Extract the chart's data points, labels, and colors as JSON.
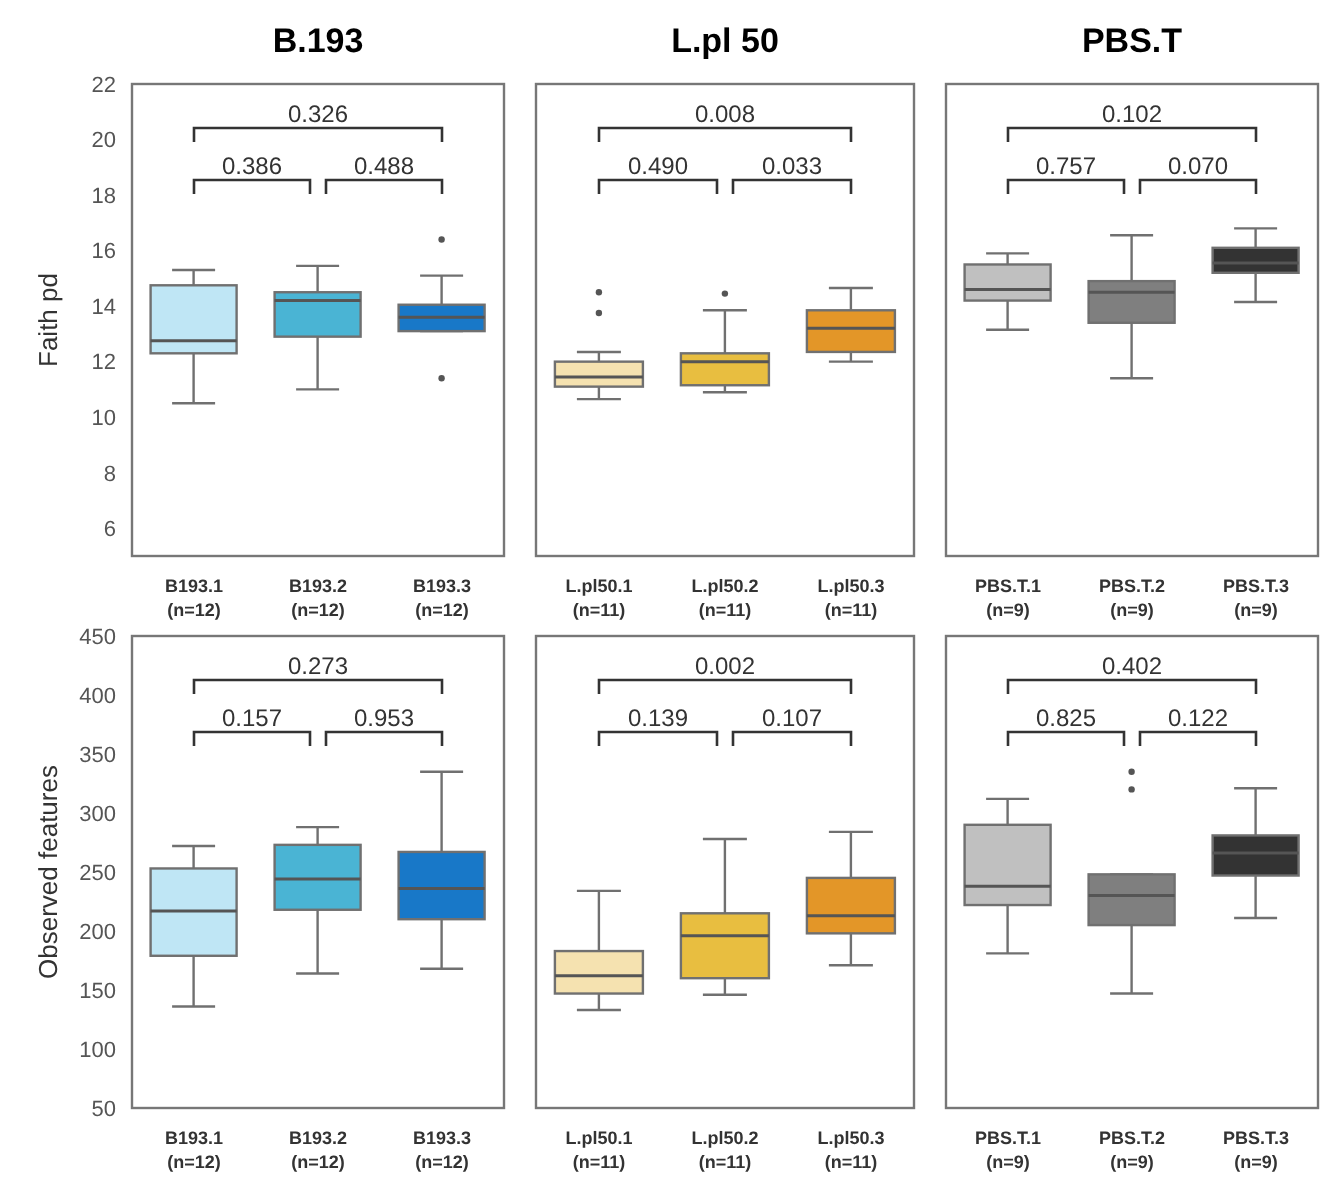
{
  "chart_data": [
    {
      "type": "box",
      "title": "B.193",
      "ylabel": "Faith pd",
      "categories": [
        "B193.1 (n=12)",
        "B193.2 (n=12)",
        "B193.3 (n=12)"
      ],
      "colors": [
        "#bfe6f5",
        "#4ab4d4",
        "#1878c8"
      ],
      "ylim": [
        5,
        22
      ],
      "yticks": [
        6,
        8,
        10,
        12,
        14,
        16,
        18,
        20,
        22
      ],
      "boxes": [
        {
          "low": 10.5,
          "q1": 12.3,
          "median": 12.75,
          "q3": 14.75,
          "high": 15.3
        },
        {
          "low": 11,
          "q1": 12.9,
          "median": 14.2,
          "q3": 14.5,
          "high": 15.45
        },
        {
          "low": 13.1,
          "q1": 13.1,
          "median": 13.6,
          "q3": 14.05,
          "high": 15.1,
          "outliers": [
            16.4,
            11.4
          ]
        }
      ],
      "annotations": [
        "0.326",
        "0.386",
        "0.488"
      ]
    },
    {
      "type": "box",
      "title": "L.pl 50",
      "categories": [
        "L.pl50.1 (n=11)",
        "L.pl50.2 (n=11)",
        "L.pl50.3 (n=11)"
      ],
      "colors": [
        "#f5e2b0",
        "#e8be40",
        "#e39628"
      ],
      "ylim": [
        5,
        22
      ],
      "yticks": [
        6,
        8,
        10,
        12,
        14,
        16,
        18,
        20,
        22
      ],
      "tick_labels": "x",
      "boxes": [
        {
          "low": 10.65,
          "q1": 11.1,
          "median": 11.45,
          "q3": 12,
          "high": 12.35,
          "outliers": [
            14.5,
            13.75
          ]
        },
        {
          "low": 10.9,
          "q1": 11.15,
          "median": 12,
          "q3": 12.3,
          "high": 13.85,
          "outliers": [
            14.45
          ]
        },
        {
          "low": 12,
          "q1": 12.35,
          "median": 13.2,
          "q3": 13.85,
          "high": 14.65
        }
      ],
      "annotations": [
        "0.008",
        "0.490",
        "0.033"
      ]
    },
    {
      "type": "box",
      "title": "PBS.T",
      "categories": [
        "PBS.T.1 (n=9)",
        "PBS.T.2 (n=9)",
        "PBS.T.3 (n=9)"
      ],
      "colors": [
        "#c0c0c0",
        "#7f7f7f",
        "#333333"
      ],
      "ylim": [
        5,
        22
      ],
      "yticks": [
        6,
        8,
        10,
        12,
        14,
        16,
        18,
        20,
        22
      ],
      "tick_labels": "x",
      "boxes": [
        {
          "low": 13.15,
          "q1": 14.2,
          "median": 14.6,
          "q3": 15.5,
          "high": 15.9
        },
        {
          "low": 11.4,
          "q1": 13.4,
          "median": 14.5,
          "q3": 14.9,
          "high": 16.55
        },
        {
          "low": 14.15,
          "q1": 15.2,
          "median": 15.55,
          "q3": 16.1,
          "high": 16.8
        }
      ],
      "annotations": [
        "0.102",
        "0.757",
        "0.070"
      ]
    },
    {
      "type": "box",
      "ylabel": "Observed features",
      "categories": [
        "B193.1 (n=12)",
        "B193.2 (n=12)",
        "B193.3 (n=12)"
      ],
      "colors": [
        "#bfe6f5",
        "#4ab4d4",
        "#1878c8"
      ],
      "ylim": [
        50,
        450
      ],
      "yticks": [
        50,
        100,
        150,
        200,
        250,
        300,
        350,
        400,
        450
      ],
      "boxes": [
        {
          "low": 136,
          "q1": 179,
          "median": 217,
          "q3": 253,
          "high": 272
        },
        {
          "low": 164,
          "q1": 218,
          "median": 244,
          "q3": 273,
          "high": 288
        },
        {
          "low": 168,
          "q1": 210,
          "median": 236,
          "q3": 267,
          "high": 335
        }
      ],
      "annotations": [
        "0.273",
        "0.157",
        "0.953"
      ]
    },
    {
      "type": "box",
      "categories": [
        "L.pl50.1 (n=11)",
        "L.pl50.2 (n=11)",
        "L.pl50.3 (n=11)"
      ],
      "colors": [
        "#f5e2b0",
        "#e8be40",
        "#e39628"
      ],
      "ylim": [
        50,
        450
      ],
      "yticks": [
        50,
        100,
        150,
        200,
        250,
        300,
        350,
        400,
        450
      ],
      "tick_labels": "x",
      "boxes": [
        {
          "low": 133,
          "q1": 147,
          "median": 162,
          "q3": 183,
          "high": 234
        },
        {
          "low": 146,
          "q1": 160,
          "median": 196,
          "q3": 215,
          "high": 278
        },
        {
          "low": 171,
          "q1": 198,
          "median": 213,
          "q3": 245,
          "high": 284
        }
      ],
      "annotations": [
        "0.002",
        "0.139",
        "0.107"
      ]
    },
    {
      "type": "box",
      "categories": [
        "PBS.T.1 (n=9)",
        "PBS.T.2 (n=9)",
        "PBS.T.3 (n=9)"
      ],
      "colors": [
        "#c0c0c0",
        "#7f7f7f",
        "#333333"
      ],
      "ylim": [
        50,
        450
      ],
      "yticks": [
        50,
        100,
        150,
        200,
        250,
        300,
        350,
        400,
        450
      ],
      "tick_labels": "x",
      "boxes": [
        {
          "low": 181,
          "q1": 222,
          "median": 238,
          "q3": 290,
          "high": 312
        },
        {
          "low": 147,
          "q1": 205,
          "median": 230,
          "q3": 248,
          "high": 248,
          "outliers": [
            335,
            320
          ]
        },
        {
          "low": 211,
          "q1": 247,
          "median": 266,
          "q3": 281,
          "high": 321
        }
      ],
      "annotations": [
        "0.402",
        "0.825",
        "0.122"
      ]
    }
  ]
}
